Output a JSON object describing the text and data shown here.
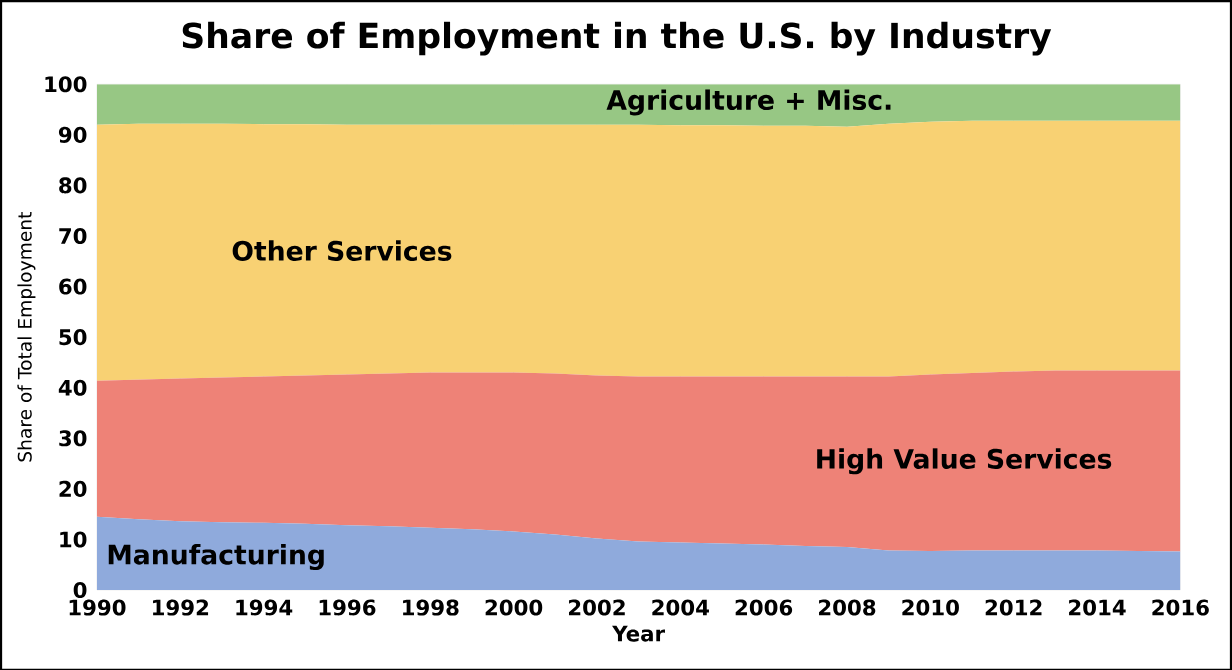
{
  "chart_data": {
    "type": "area",
    "stacked": true,
    "title": "Share of Employment in the U.S. by Industry",
    "xlabel": "Year",
    "ylabel": "Share of Total Employment",
    "x": [
      1990,
      1991,
      1992,
      1993,
      1994,
      1995,
      1996,
      1997,
      1998,
      1999,
      2000,
      2001,
      2002,
      2003,
      2004,
      2005,
      2006,
      2007,
      2008,
      2009,
      2010,
      2011,
      2012,
      2013,
      2014,
      2015,
      2016
    ],
    "series": [
      {
        "name": "Manufacturing",
        "color": "#8faadc",
        "values": [
          14.5,
          14.0,
          13.6,
          13.4,
          13.3,
          13.1,
          12.8,
          12.6,
          12.3,
          12.0,
          11.6,
          11.0,
          10.2,
          9.6,
          9.4,
          9.2,
          9.0,
          8.7,
          8.5,
          7.8,
          7.7,
          7.8,
          7.8,
          7.8,
          7.8,
          7.7,
          7.6
        ]
      },
      {
        "name": "High Value Services",
        "color": "#ee8277",
        "values": [
          26.9,
          27.6,
          28.2,
          28.6,
          28.9,
          29.3,
          29.8,
          30.2,
          30.7,
          31.0,
          31.4,
          31.8,
          32.2,
          32.6,
          32.8,
          33.0,
          33.2,
          33.5,
          33.7,
          34.4,
          34.9,
          35.1,
          35.4,
          35.6,
          35.6,
          35.7,
          35.8
        ]
      },
      {
        "name": "Other Services",
        "color": "#f8d173",
        "values": [
          50.6,
          50.6,
          50.4,
          50.2,
          49.9,
          49.7,
          49.4,
          49.2,
          49.0,
          49.0,
          49.0,
          49.2,
          49.6,
          49.8,
          49.7,
          49.7,
          49.6,
          49.6,
          49.4,
          50.0,
          50.0,
          49.9,
          49.6,
          49.4,
          49.4,
          49.4,
          49.4
        ]
      },
      {
        "name": "Agriculture + Misc.",
        "color": "#97c784",
        "values": [
          8.0,
          7.8,
          7.8,
          7.8,
          7.9,
          7.9,
          8.0,
          8.0,
          8.0,
          8.0,
          8.0,
          8.0,
          8.0,
          8.0,
          8.1,
          8.1,
          8.2,
          8.2,
          8.4,
          7.8,
          7.4,
          7.2,
          7.2,
          7.2,
          7.2,
          7.2,
          7.2
        ]
      }
    ],
    "xlim": [
      1990,
      2016
    ],
    "xticks": [
      1990,
      1992,
      1994,
      1996,
      1998,
      2000,
      2002,
      2004,
      2006,
      2008,
      2010,
      2012,
      2014,
      2016
    ],
    "ylim": [
      0,
      100
    ],
    "yticks": [
      0,
      10,
      20,
      30,
      40,
      50,
      60,
      70,
      80,
      90,
      100
    ],
    "grid": true
  }
}
